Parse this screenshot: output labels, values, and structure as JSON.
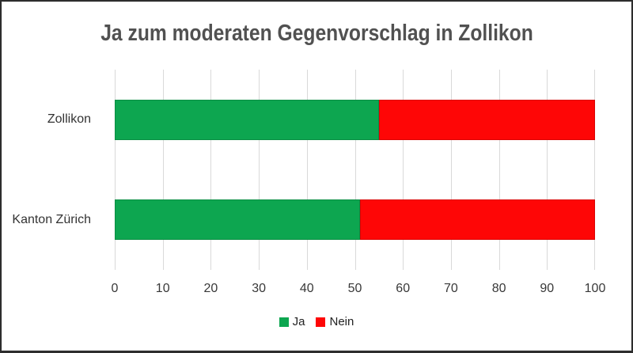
{
  "chart_data": {
    "type": "bar",
    "orientation": "horizontal",
    "stacked": true,
    "title": "Ja zum moderaten Gegenvorschlag in Zollikon",
    "categories": [
      "Zollikon",
      "Kanton Zürich"
    ],
    "series": [
      {
        "name": "Ja",
        "color": "#0da650",
        "values": [
          55,
          51
        ]
      },
      {
        "name": "Nein",
        "color": "#fe0606",
        "values": [
          45,
          49
        ]
      }
    ],
    "x_ticks": [
      0,
      10,
      20,
      30,
      40,
      50,
      60,
      70,
      80,
      90,
      100
    ],
    "xlim": [
      0,
      100
    ],
    "xlabel": "",
    "ylabel": "",
    "grid": "vertical",
    "gridline_color": "#d9d9d9",
    "legend_position": "bottom",
    "legend_entries": [
      "Ja",
      "Nein"
    ],
    "title_color": "#515151",
    "axis_text_color": "#383838",
    "frame_border_color": "#2d2d2d"
  }
}
